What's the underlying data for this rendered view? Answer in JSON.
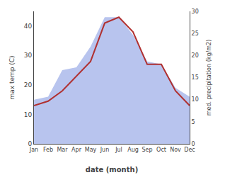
{
  "chart_data": {
    "type": "line",
    "categories": [
      "Jan",
      "Feb",
      "Mar",
      "Apr",
      "May",
      "Jun",
      "Jul",
      "Aug",
      "Sep",
      "Oct",
      "Nov",
      "Dec"
    ],
    "series": [
      {
        "type": "area",
        "color": "#b8c4ee",
        "values": [
          15,
          16,
          25,
          26,
          33,
          43,
          43,
          37,
          28,
          27,
          19,
          16
        ]
      },
      {
        "type": "line",
        "color": "#b03030",
        "values": [
          13,
          14.5,
          18,
          23,
          28,
          41,
          43,
          38,
          27,
          27,
          18,
          13
        ]
      }
    ],
    "xlabel": "date (month)",
    "ylabel": "max temp (C)",
    "y2label": "med. precipitation (kg/m2)",
    "ylim": [
      0,
      45
    ],
    "yticks": [
      0,
      10,
      20,
      30,
      40
    ],
    "y2lim": [
      0,
      30
    ],
    "y2ticks": [
      0,
      5,
      10,
      15,
      20,
      25,
      30
    ],
    "grid": false
  }
}
